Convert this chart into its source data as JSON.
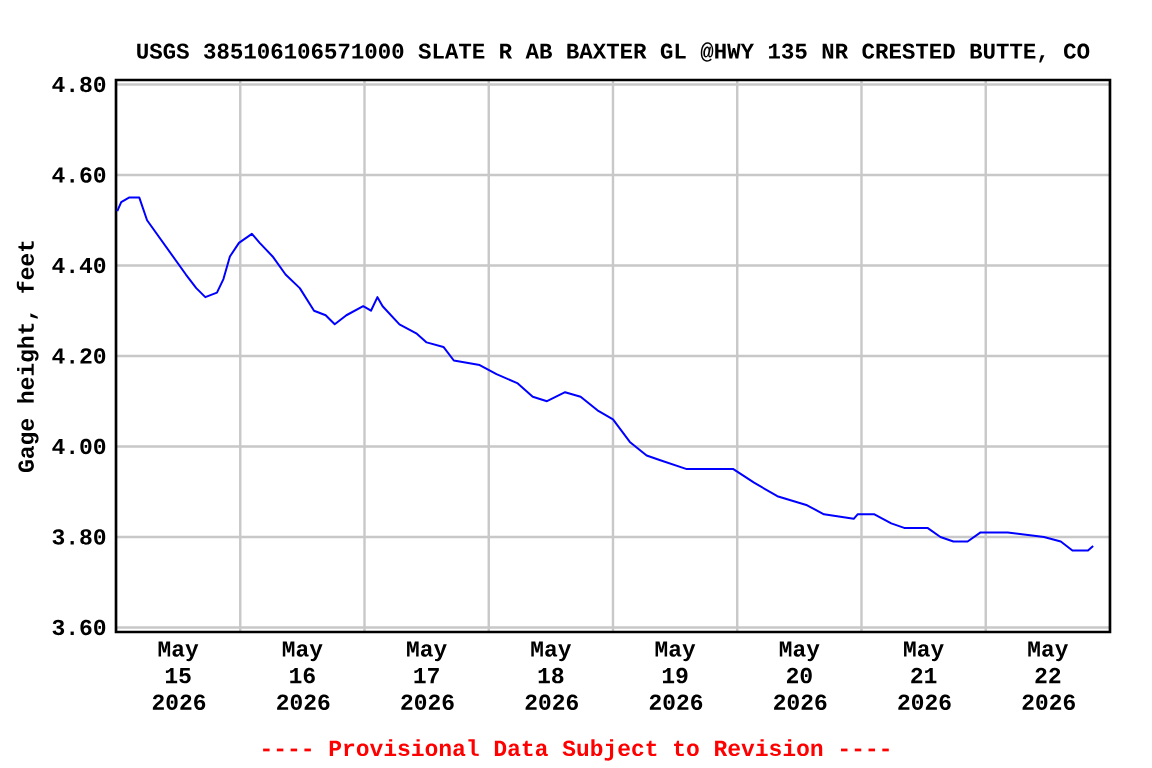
{
  "chart_data": {
    "type": "line",
    "title": "USGS 385106106571000 SLATE R AB BAXTER GL @HWY 135 NR CRESTED BUTTE, CO",
    "ylabel": "Gage height, feet",
    "annotations": [
      "---- Provisional Data Subject to Revision ----"
    ],
    "x": [
      "2026-05-15T00:15",
      "2026-05-15T01:00",
      "2026-05-15T02:30",
      "2026-05-15T04:30",
      "2026-05-15T06:00",
      "2026-05-15T08:30",
      "2026-05-15T11:00",
      "2026-05-15T13:30",
      "2026-05-15T15:30",
      "2026-05-15T17:15",
      "2026-05-15T19:30",
      "2026-05-15T20:45",
      "2026-05-15T22:00",
      "2026-05-15T23:45",
      "2026-05-16T02:15",
      "2026-05-16T03:45",
      "2026-05-16T06:15",
      "2026-05-16T08:45",
      "2026-05-16T11:30",
      "2026-05-16T14:15",
      "2026-05-16T16:30",
      "2026-05-16T18:15",
      "2026-05-16T20:30",
      "2026-05-16T23:45",
      "2026-05-17T01:15",
      "2026-05-17T02:30",
      "2026-05-17T03:30",
      "2026-05-17T06:45",
      "2026-05-17T10:00",
      "2026-05-17T12:00",
      "2026-05-17T15:15",
      "2026-05-17T17:15",
      "2026-05-17T22:15",
      "2026-05-18T01:30",
      "2026-05-18T05:30",
      "2026-05-18T08:30",
      "2026-05-18T11:15",
      "2026-05-18T14:45",
      "2026-05-18T17:45",
      "2026-05-18T21:00",
      "2026-05-19T00:00",
      "2026-05-19T03:15",
      "2026-05-19T06:30",
      "2026-05-19T09:00",
      "2026-05-19T14:15",
      "2026-05-19T19:30",
      "2026-05-19T23:15",
      "2026-05-20T03:15",
      "2026-05-20T07:45",
      "2026-05-20T13:30",
      "2026-05-20T16:45",
      "2026-05-20T22:30",
      "2026-05-20T23:15",
      "2026-05-21T02:30",
      "2026-05-21T05:45",
      "2026-05-21T08:15",
      "2026-05-21T12:45",
      "2026-05-21T15:15",
      "2026-05-21T17:45",
      "2026-05-21T20:30",
      "2026-05-21T23:00",
      "2026-05-22T04:15",
      "2026-05-22T11:15",
      "2026-05-22T14:30",
      "2026-05-22T16:45",
      "2026-05-22T19:45",
      "2026-05-22T20:45"
    ],
    "series": [
      {
        "color": "#0000ff",
        "values": [
          4.52,
          4.54,
          4.55,
          4.55,
          4.5,
          4.46,
          4.42,
          4.38,
          4.35,
          4.33,
          4.34,
          4.37,
          4.42,
          4.45,
          4.47,
          4.45,
          4.42,
          4.38,
          4.35,
          4.3,
          4.29,
          4.27,
          4.29,
          4.31,
          4.3,
          4.33,
          4.31,
          4.27,
          4.25,
          4.23,
          4.22,
          4.19,
          4.18,
          4.16,
          4.14,
          4.11,
          4.1,
          4.12,
          4.11,
          4.08,
          4.06,
          4.01,
          3.98,
          3.97,
          3.95,
          3.95,
          3.95,
          3.92,
          3.89,
          3.87,
          3.85,
          3.84,
          3.85,
          3.85,
          3.83,
          3.82,
          3.82,
          3.8,
          3.79,
          3.79,
          3.81,
          3.81,
          3.8,
          3.79,
          3.77,
          3.77,
          3.78
        ]
      }
    ],
    "xlim": [
      "2026-05-15T00:00",
      "2026-05-23T00:00"
    ],
    "ylim": [
      3.59,
      4.81
    ],
    "xticks": [
      {
        "value": "2026-05-15T12:00",
        "label": "May 15 2026"
      },
      {
        "value": "2026-05-16T12:00",
        "label": "May 16 2026"
      },
      {
        "value": "2026-05-17T12:00",
        "label": "May 17 2026"
      },
      {
        "value": "2026-05-18T12:00",
        "label": "May 18 2026"
      },
      {
        "value": "2026-05-19T12:00",
        "label": "May 19 2026"
      },
      {
        "value": "2026-05-20T12:00",
        "label": "May 20 2026"
      },
      {
        "value": "2026-05-21T12:00",
        "label": "May 21 2026"
      },
      {
        "value": "2026-05-22T12:00",
        "label": "May 22 2026"
      },
      {
        "value": "2026-05-16T00:00",
        "label": null
      },
      {
        "value": "2026-05-17T00:00",
        "label": null
      },
      {
        "value": "2026-05-18T00:00",
        "label": null
      },
      {
        "value": "2026-05-19T00:00",
        "label": null
      },
      {
        "value": "2026-05-20T00:00",
        "label": null
      },
      {
        "value": "2026-05-21T00:00",
        "label": null
      },
      {
        "value": "2026-05-22T00:00",
        "label": null
      }
    ],
    "yticks": [
      {
        "value": 3.6,
        "label": "3.60"
      },
      {
        "value": 3.8,
        "label": "3.80"
      },
      {
        "value": 4.0,
        "label": "4.00"
      },
      {
        "value": 4.2,
        "label": "4.20"
      },
      {
        "value": 4.4,
        "label": "4.40"
      },
      {
        "value": 4.6,
        "label": "4.60"
      },
      {
        "value": 4.8,
        "label": "4.80"
      }
    ],
    "grid": true,
    "line_style": "solid",
    "marker": "none"
  }
}
